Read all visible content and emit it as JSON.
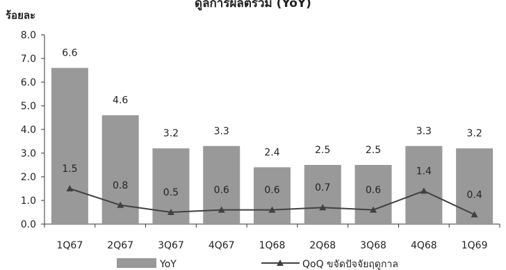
{
  "chart_data": {
    "type": "bar",
    "title": "ดูลการผลิตรวม (YoY)",
    "y_unit_label": "ร้อยละ",
    "categories": [
      "1Q67",
      "2Q67",
      "3Q67",
      "4Q67",
      "1Q68",
      "2Q68",
      "3Q68",
      "4Q68",
      "1Q69"
    ],
    "ylim": [
      0,
      8
    ],
    "yticks": [
      "0.0",
      "1.0",
      "2.0",
      "3.0",
      "4.0",
      "5.0",
      "6.0",
      "7.0",
      "8.0"
    ],
    "series": [
      {
        "name": "YoY",
        "type": "bar",
        "color": "#999999",
        "values": [
          6.6,
          4.6,
          3.2,
          3.3,
          2.4,
          2.5,
          2.5,
          3.3,
          3.2
        ],
        "labels": [
          "6.6",
          "4.6",
          "3.2",
          "3.3",
          "2.4",
          "2.5",
          "2.5",
          "3.3",
          "3.2"
        ]
      },
      {
        "name": "QoQ ขจัดปัจจัยฤดูกาล",
        "type": "line",
        "color": "#404040",
        "values": [
          1.5,
          0.8,
          0.5,
          0.6,
          0.6,
          0.7,
          0.6,
          1.4,
          0.4
        ],
        "labels": [
          "1.5",
          "0.8",
          "0.5",
          "0.6",
          "0.6",
          "0.7",
          "0.6",
          "1.4",
          "0.4"
        ]
      }
    ],
    "grid": false,
    "legend_position": "bottom"
  }
}
